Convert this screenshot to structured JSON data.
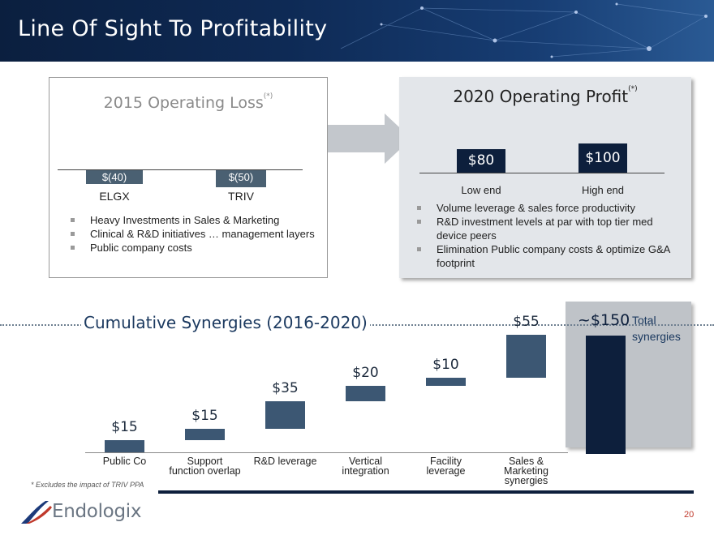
{
  "header": {
    "title": "Line Of Sight To Profitability"
  },
  "loss_box": {
    "title": "2015 Operating Loss",
    "title_sup": "(*)",
    "bars": [
      {
        "label": "$(40)",
        "category": "ELGX",
        "value": -40
      },
      {
        "label": "$(50)",
        "category": "TRIV",
        "value": -50
      }
    ],
    "bullets": [
      "Heavy Investments in Sales & Marketing",
      "Clinical & R&D initiatives … management layers",
      "Public company costs"
    ]
  },
  "profit_box": {
    "title": "2020 Operating Profit",
    "title_sup": "(*)",
    "bars": [
      {
        "label": "$80",
        "category": "Low end",
        "value": 80
      },
      {
        "label": "$100",
        "category": "High end",
        "value": 100
      }
    ],
    "bullets": [
      "Volume leverage & sales force productivity",
      "R&D investment levels at par with top tier med device peers",
      "Elimination Public company costs & optimize G&A footprint"
    ]
  },
  "synergies": {
    "title": "Cumulative Synergies (2016-2020)",
    "steps": [
      {
        "label": "$15",
        "category": "Public Co",
        "value": 15
      },
      {
        "label": "$15",
        "category": "Support function overlap",
        "value": 15
      },
      {
        "label": "$35",
        "category": "R&D leverage",
        "value": 35
      },
      {
        "label": "$20",
        "category": "Vertical integration",
        "value": 20
      },
      {
        "label": "$10",
        "category": "Facility leverage",
        "value": 10
      },
      {
        "label": "$55",
        "category": "Sales & Marketing synergies",
        "value": 55
      }
    ],
    "total_label": "~$150",
    "total_text": "Total synergies",
    "total_value": 150
  },
  "chart_data": [
    {
      "type": "bar",
      "title": "2015 Operating Loss",
      "categories": [
        "ELGX",
        "TRIV"
      ],
      "values": [
        -40,
        -50
      ]
    },
    {
      "type": "bar",
      "title": "2020 Operating Profit",
      "categories": [
        "Low end",
        "High end"
      ],
      "values": [
        80,
        100
      ]
    },
    {
      "type": "bar",
      "title": "Cumulative Synergies (2016-2020)",
      "categories": [
        "Public Co",
        "Support function overlap",
        "R&D leverage",
        "Vertical integration",
        "Facility leverage",
        "Sales & Marketing synergies"
      ],
      "values": [
        15,
        15,
        35,
        20,
        10,
        55
      ],
      "total": 150
    }
  ],
  "footnote": "*  Excludes the impact of TRIV PPA",
  "logo": {
    "text": "Endologix"
  },
  "page_number": "20",
  "colors": {
    "navy": "#0d1f3c",
    "slate": "#4a6072",
    "steel": "#3c5773",
    "panel": "#e3e6ea"
  }
}
